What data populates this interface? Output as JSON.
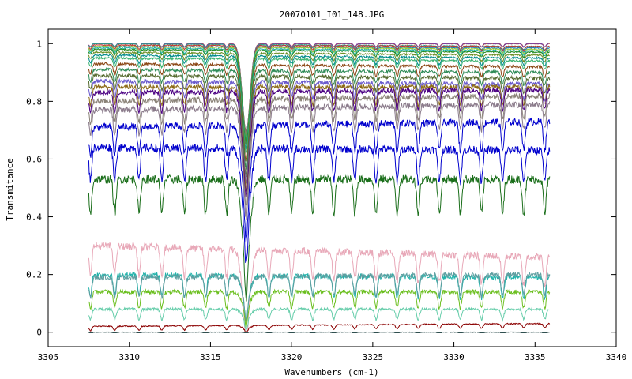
{
  "chart_data": {
    "type": "line",
    "title": "20070101_I01_148.JPG",
    "xlabel": "Wavenumbers (cm-1)",
    "ylabel": "Transmitance",
    "xlim": [
      3305,
      3340
    ],
    "ylim": [
      -0.05,
      1.05
    ],
    "x_ticks": [
      3305,
      3310,
      3315,
      3320,
      3325,
      3330,
      3335,
      3340
    ],
    "x_tick_labels": [
      "3305",
      "3310",
      "3315",
      "3320",
      "3325",
      "3330",
      "3335",
      "3340"
    ],
    "y_ticks": [
      0,
      0.2,
      0.4,
      0.6,
      0.8,
      1
    ],
    "y_tick_labels": [
      "0",
      "0.2",
      "0.4",
      "0.6",
      "0.8",
      "1"
    ],
    "grid": false,
    "legend": "none",
    "x_range_data": [
      3307.5,
      3335.9
    ],
    "absorption_lines": [
      3307.6,
      3309.1,
      3310.6,
      3312.0,
      3313.4,
      3314.7,
      3316.0,
      3317.2,
      3318.6,
      3320.0,
      3321.3,
      3322.6,
      3323.9,
      3325.2,
      3326.5,
      3327.8,
      3329.1,
      3330.4,
      3331.7,
      3333.0,
      3334.3,
      3335.6
    ],
    "series": [
      {
        "color": "#8b7d8b",
        "start": 1.0,
        "end": 1.0
      },
      {
        "color": "#e05a00",
        "start": 1.0,
        "end": 1.0
      },
      {
        "color": "#7b3fa0",
        "start": 1.0,
        "end": 1.0
      },
      {
        "color": "#2a9d8f",
        "start": 1.0,
        "end": 0.99
      },
      {
        "color": "#c0392b",
        "start": 0.995,
        "end": 0.99
      },
      {
        "color": "#1f77b4",
        "start": 0.99,
        "end": 0.985
      },
      {
        "color": "#9acd32",
        "start": 0.99,
        "end": 0.98
      },
      {
        "color": "#20b2aa",
        "start": 0.985,
        "end": 0.975
      },
      {
        "color": "#228b22",
        "start": 0.98,
        "end": 0.97
      },
      {
        "color": "#6b8e23",
        "start": 0.97,
        "end": 0.96
      },
      {
        "color": "#008b8b",
        "start": 0.96,
        "end": 0.95
      },
      {
        "color": "#3cb371",
        "start": 0.95,
        "end": 0.94
      },
      {
        "color": "#8b4513",
        "start": 0.93,
        "end": 0.92
      },
      {
        "color": "#2e8b57",
        "start": 0.91,
        "end": 0.9
      },
      {
        "color": "#556b2f",
        "start": 0.89,
        "end": 0.88
      },
      {
        "color": "#6a5acd",
        "start": 0.87,
        "end": 0.86
      },
      {
        "color": "#8b6914",
        "start": 0.85,
        "end": 0.85
      },
      {
        "color": "#4b0082",
        "start": 0.83,
        "end": 0.84
      },
      {
        "color": "#8b8378",
        "start": 0.8,
        "end": 0.82
      },
      {
        "color": "#8b7b8b",
        "start": 0.77,
        "end": 0.79
      },
      {
        "color": "#0000cd",
        "start": 0.71,
        "end": 0.73
      },
      {
        "color": "#0000cd",
        "start": 0.64,
        "end": 0.63
      },
      {
        "color": "#1a6e1a",
        "start": 0.53,
        "end": 0.53
      },
      {
        "color": "#e8a8b8",
        "start": 0.3,
        "end": 0.26
      },
      {
        "color": "#20b2aa",
        "start": 0.2,
        "end": 0.19
      },
      {
        "color": "#5f9ea0",
        "start": 0.19,
        "end": 0.2
      },
      {
        "color": "#6bbf1f",
        "start": 0.14,
        "end": 0.14
      },
      {
        "color": "#66cdaa",
        "start": 0.08,
        "end": 0.08
      },
      {
        "color": "#8b0000",
        "start": 0.02,
        "end": 0.03
      },
      {
        "color": "#2f4f4f",
        "start": 0.0,
        "end": 0.0
      }
    ]
  }
}
